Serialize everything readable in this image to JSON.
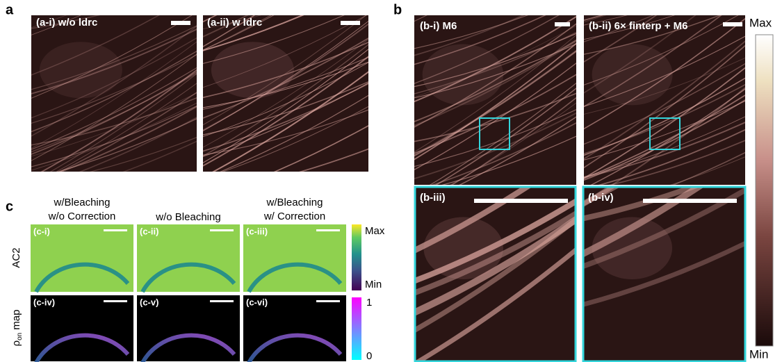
{
  "panel_a": {
    "letter": "a",
    "images": [
      "(a-i) w/o ldrc",
      "(a-ii) w ldrc"
    ]
  },
  "panel_b": {
    "letter": "b",
    "images": [
      "(b-i) M6",
      "(b-ii) 6× finterp + M6",
      "(b-iii)",
      "(b-iv)"
    ],
    "colorbar": {
      "max": "Max",
      "min": "Min"
    }
  },
  "panel_c": {
    "letter": "c",
    "columns": [
      [
        "w/Bleaching",
        "w/o Correction"
      ],
      [
        "w/o Bleaching"
      ],
      [
        "w/Bleaching",
        "w/ Correction"
      ]
    ],
    "rows": [
      {
        "label": "AC2"
      },
      {
        "symbol": "ρ",
        "subscript": "on",
        "label": "map"
      }
    ],
    "images": [
      "(c-i)",
      "(c-ii)",
      "(c-iii)",
      "(c-iv)",
      "(c-v)",
      "(c-vi)"
    ],
    "colorbar_ac2": {
      "max": "Max",
      "min": "Min"
    },
    "colorbar_rho": {
      "max": "1",
      "min": "0"
    }
  }
}
